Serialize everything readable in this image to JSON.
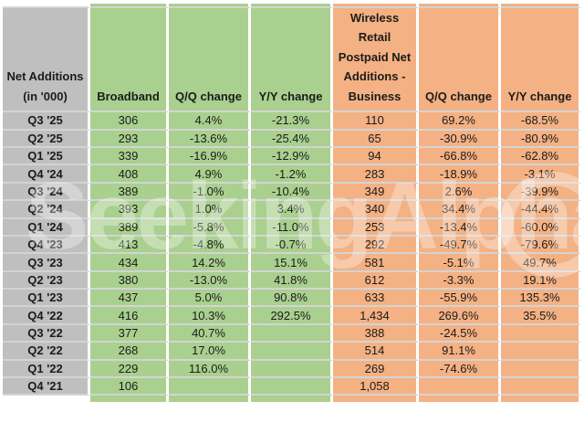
{
  "watermark": {
    "text": "SeekingAlpha"
  },
  "colors": {
    "row_header_bg": "#bfbfbf",
    "broadband_group_bg": "#a9d08e",
    "wireless_group_bg": "#f4b183",
    "gridline_horizontal": "#d4d4d4",
    "gridline_vertical": "#ffffff",
    "text": "#1b1b1b"
  },
  "table": {
    "row_header_title": "Net Additions (in '000)",
    "col_headers": [
      "Broadband",
      "Q/Q change",
      "Y/Y change",
      "Wireless Retail Postpaid Net Additions - Business",
      "Q/Q change",
      "Y/Y change"
    ],
    "rows": [
      {
        "label": "Q3 '25",
        "values": [
          "306",
          "4.4%",
          "-21.3%",
          "110",
          "69.2%",
          "-68.5%"
        ]
      },
      {
        "label": "Q2 '25",
        "values": [
          "293",
          "-13.6%",
          "-25.4%",
          "65",
          "-30.9%",
          "-80.9%"
        ]
      },
      {
        "label": "Q1 '25",
        "values": [
          "339",
          "-16.9%",
          "-12.9%",
          "94",
          "-66.8%",
          "-62.8%"
        ]
      },
      {
        "label": "Q4 '24",
        "values": [
          "408",
          "4.9%",
          "-1.2%",
          "283",
          "-18.9%",
          "-3.1%"
        ]
      },
      {
        "label": "Q3 '24",
        "values": [
          "389",
          "-1.0%",
          "-10.4%",
          "349",
          "2.6%",
          "-39.9%"
        ]
      },
      {
        "label": "Q2 '24",
        "values": [
          "393",
          "1.0%",
          "3.4%",
          "340",
          "34.4%",
          "-44.4%"
        ]
      },
      {
        "label": "Q1 '24",
        "values": [
          "389",
          "-5.8%",
          "-11.0%",
          "253",
          "-13.4%",
          "-60.0%"
        ]
      },
      {
        "label": "Q4 '23",
        "values": [
          "413",
          "-4.8%",
          "-0.7%",
          "292",
          "-49.7%",
          "-79.6%"
        ]
      },
      {
        "label": "Q3 '23",
        "values": [
          "434",
          "14.2%",
          "15.1%",
          "581",
          "-5.1%",
          "49.7%"
        ]
      },
      {
        "label": "Q2 '23",
        "values": [
          "380",
          "-13.0%",
          "41.8%",
          "612",
          "-3.3%",
          "19.1%"
        ]
      },
      {
        "label": "Q1 '23",
        "values": [
          "437",
          "5.0%",
          "90.8%",
          "633",
          "-55.9%",
          "135.3%"
        ]
      },
      {
        "label": "Q4 '22",
        "values": [
          "416",
          "10.3%",
          "292.5%",
          "1,434",
          "269.6%",
          "35.5%"
        ]
      },
      {
        "label": "Q3 '22",
        "values": [
          "377",
          "40.7%",
          "",
          "388",
          "-24.5%",
          ""
        ]
      },
      {
        "label": "Q2 '22",
        "values": [
          "268",
          "17.0%",
          "",
          "514",
          "91.1%",
          ""
        ]
      },
      {
        "label": "Q1 '22",
        "values": [
          "229",
          "116.0%",
          "",
          "269",
          "-74.6%",
          ""
        ]
      },
      {
        "label": "Q4 '21",
        "values": [
          "106",
          "",
          "",
          "1,058",
          "",
          ""
        ]
      }
    ]
  }
}
